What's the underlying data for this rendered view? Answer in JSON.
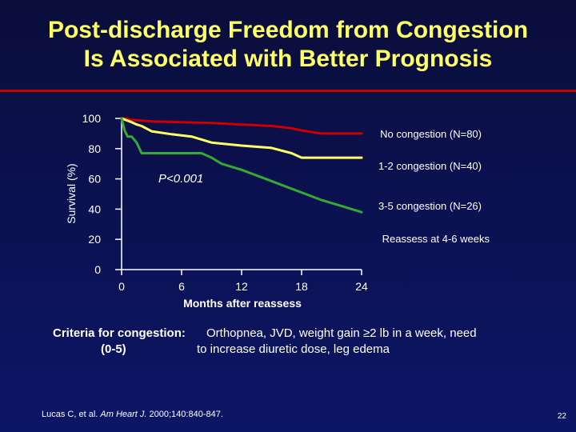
{
  "slide": {
    "title_line1": "Post-discharge Freedom from Congestion",
    "title_line2": "Is Associated with Better Prognosis",
    "criteria_label": "Criteria for congestion:",
    "criteria_text": "Orthopnea, JVD, weight gain ≥2 lb in a week, need",
    "criteria_scale": "(0-5)",
    "criteria_text2": "to increase diuretic dose, leg edema",
    "citation_authors": "Lucas C, et al.",
    "citation_journal": "Am Heart J.",
    "citation_details": "2000;140:840-847.",
    "slide_number": "22"
  },
  "colors": {
    "title": "#ffff66",
    "rule": "#c80000",
    "no_congestion": "#cc0000",
    "congestion_1_2": "#ffff66",
    "congestion_3_5": "#33aa33"
  },
  "chart_data": {
    "type": "line",
    "title": "",
    "xlabel": "Months after reassess",
    "ylabel": "Survival (%)",
    "xlim": [
      0,
      24
    ],
    "ylim": [
      0,
      100
    ],
    "xticks": [
      0,
      6,
      12,
      18,
      24
    ],
    "yticks": [
      0,
      20,
      40,
      60,
      80,
      100
    ],
    "annotation": "P<0.001",
    "note": "Reassess at 4-6 weeks",
    "series": [
      {
        "name": "No congestion (N=80)",
        "color_key": "no_congestion",
        "x": [
          0,
          0.5,
          1,
          2,
          3,
          6,
          9,
          12,
          15,
          17,
          18,
          20,
          24
        ],
        "y": [
          100,
          100,
          99,
          98.5,
          98,
          97.5,
          97,
          96,
          95,
          93.5,
          92,
          90,
          90
        ]
      },
      {
        "name": "1-2 congestion (N=40)",
        "color_key": "congestion_1_2",
        "x": [
          0,
          1,
          1.5,
          2,
          3,
          5,
          7,
          9,
          12,
          15,
          17,
          18,
          24
        ],
        "y": [
          100,
          97.5,
          96,
          95,
          91.5,
          89.5,
          88,
          84,
          82,
          80.5,
          77,
          74,
          74
        ]
      },
      {
        "name": "3-5 congestion (N=26)",
        "color_key": "congestion_3_5",
        "x": [
          0,
          0.3,
          0.6,
          1,
          1.5,
          2,
          8,
          9,
          10,
          12,
          14,
          16,
          18,
          20,
          22,
          24
        ],
        "y": [
          100,
          92,
          88,
          88,
          84,
          77,
          77,
          74,
          70,
          66,
          61,
          56,
          51,
          46,
          42,
          38
        ]
      }
    ]
  }
}
